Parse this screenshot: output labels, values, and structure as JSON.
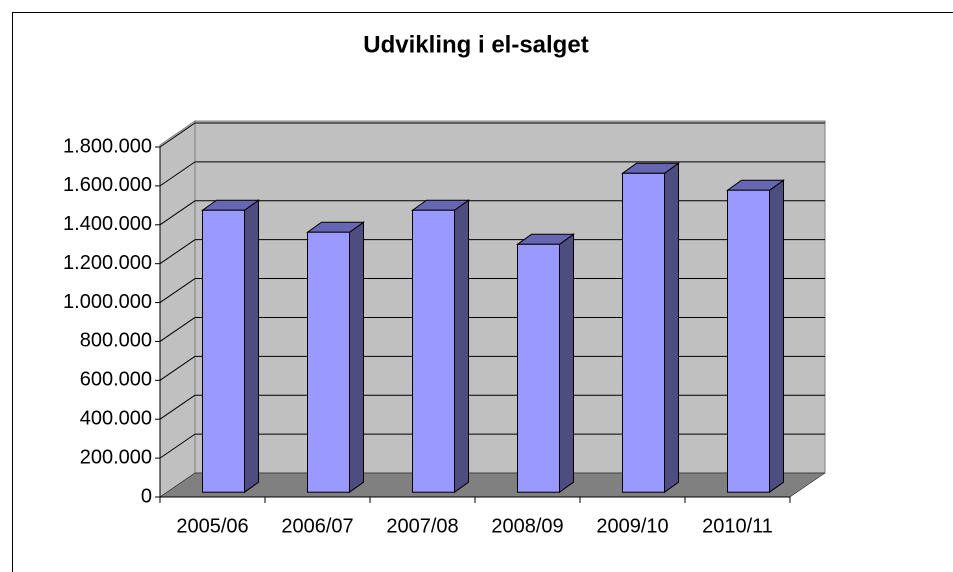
{
  "chart_data": {
    "type": "bar3d",
    "title": "Udvikling i el-salget",
    "categories": [
      "2005/06",
      "2006/07",
      "2007/08",
      "2008/09",
      "2009/10",
      "2010/11"
    ],
    "values": [
      1450000,
      1337000,
      1450000,
      1275000,
      1640000,
      1553000
    ],
    "color": "#9999ff",
    "ylim": [
      0,
      1800000
    ],
    "yticks": [
      0,
      {
        "value": 200000,
        "label": "200.000"
      },
      {
        "value": 400000,
        "label": "400.000"
      },
      {
        "value": 600000,
        "label": "600.000"
      },
      {
        "value": 800000,
        "label": "800.000"
      },
      {
        "value": 1000000,
        "label": "1.000.000"
      },
      {
        "value": 1200000,
        "label": "1.200.000"
      },
      {
        "value": 1400000,
        "label": "1.400.000"
      },
      {
        "value": 1600000,
        "label": "1.600.000"
      },
      {
        "value": 1800000,
        "label": "1.800.000"
      }
    ],
    "grid": true
  }
}
